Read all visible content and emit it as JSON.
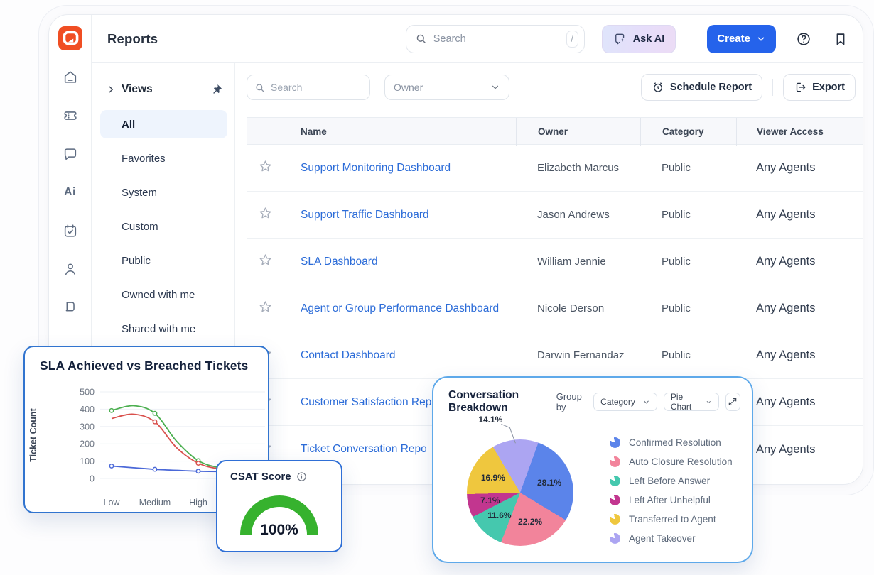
{
  "brand": {
    "logo_color": "#F04E23"
  },
  "header": {
    "title": "Reports",
    "search": {
      "placeholder": "Search",
      "shortcut": "/"
    },
    "ask_ai_label": "Ask AI",
    "create_label": "Create"
  },
  "nav_icons": [
    "home",
    "tickets",
    "chat",
    "ai",
    "tasks",
    "contacts",
    "knowledge-base"
  ],
  "views_panel": {
    "section_label": "Views",
    "selected": "All",
    "items": [
      "All",
      "Favorites",
      "System",
      "Custom",
      "Public",
      "Owned with me",
      "Shared with me"
    ]
  },
  "toolbar": {
    "search_placeholder": "Search",
    "owner_filter_label": "Owner",
    "schedule_report_label": "Schedule Report",
    "export_label": "Export"
  },
  "table": {
    "columns": [
      "Name",
      "Owner",
      "Category",
      "Viewer Access"
    ],
    "rows": [
      {
        "name": "Support Monitoring Dashboard",
        "owner": "Elizabeth Marcus",
        "category": "Public",
        "viewer_access": "Any Agents"
      },
      {
        "name": "Support Traffic Dashboard",
        "owner": "Jason Andrews",
        "category": "Public",
        "viewer_access": "Any Agents"
      },
      {
        "name": "SLA Dashboard",
        "owner": "William Jennie",
        "category": "Public",
        "viewer_access": "Any Agents"
      },
      {
        "name": "Agent or Group Performance Dashboard",
        "owner": "Nicole Derson",
        "category": "Public",
        "viewer_access": "Any Agents"
      },
      {
        "name": "Contact Dashboard",
        "owner": "Darwin Fernandaz",
        "category": "Public",
        "viewer_access": "Any Agents"
      },
      {
        "name": "Customer Satisfaction Rep",
        "owner": "",
        "category": "",
        "viewer_access": "Any Agents"
      },
      {
        "name": "Ticket Conversation Repo",
        "owner": "",
        "category": "",
        "viewer_access": "Any Agents"
      }
    ]
  },
  "chart_data": [
    {
      "id": "sla_line_chart",
      "type": "line",
      "title": "SLA Achieved vs Breached Tickets",
      "ylabel": "Ticket Count",
      "categories": [
        "Low",
        "Medium",
        "High"
      ],
      "ylim": [
        0,
        500
      ],
      "yticks": [
        0,
        100,
        200,
        300,
        400,
        500
      ],
      "grid": true,
      "legend_position": "none",
      "series": [
        {
          "name": "achieved-green",
          "color": "#4caf50",
          "x": [
            0,
            0.5,
            1,
            1.5,
            2,
            2.5,
            3
          ],
          "values": [
            392,
            420,
            376,
            215,
            103,
            62,
            52
          ],
          "markers": [
            0,
            2,
            4
          ]
        },
        {
          "name": "breached-red",
          "color": "#d9504c",
          "x": [
            0,
            0.5,
            1,
            1.5,
            2,
            2.5,
            3
          ],
          "values": [
            346,
            371,
            327,
            178,
            88,
            55,
            46
          ],
          "markers": [
            2,
            4
          ]
        },
        {
          "name": "baseline-blue",
          "color": "#4a68d8",
          "x": [
            0,
            0.5,
            1,
            1.5,
            2,
            2.5,
            3
          ],
          "values": [
            72,
            62,
            53,
            47,
            42,
            40,
            38
          ],
          "markers": [
            0,
            2,
            4
          ]
        }
      ]
    },
    {
      "id": "csat_gauge",
      "type": "gauge",
      "title": "CSAT Score",
      "value": 100,
      "value_label": "100%",
      "range": [
        0,
        100
      ],
      "color": "#36b22e"
    },
    {
      "id": "conversation_breakdown",
      "type": "pie",
      "title": "Conversation Breakdown",
      "group_by_label": "Group by",
      "group_by_value": "Category",
      "chart_type_value": "Pie Chart",
      "start_angle": 20,
      "slices": [
        {
          "label": "Confirmed Resolution",
          "value": 28.1,
          "color": "#5b84ea",
          "label_outside": false
        },
        {
          "label": "Auto Closure Resolution",
          "value": 22.2,
          "color": "#f2849b",
          "label_outside": false
        },
        {
          "label": "Left Before Answer",
          "value": 11.6,
          "color": "#45c8ae",
          "label_outside": false
        },
        {
          "label": "Left After Unhelpful",
          "value": 7.1,
          "color": "#c2368f",
          "label_outside": false
        },
        {
          "label": "Transferred to Agent",
          "value": 16.9,
          "color": "#efc73e",
          "label_outside": false
        },
        {
          "label": "Agent Takeover",
          "value": 14.1,
          "color": "#aca5f2",
          "label_outside": true
        }
      ]
    }
  ]
}
